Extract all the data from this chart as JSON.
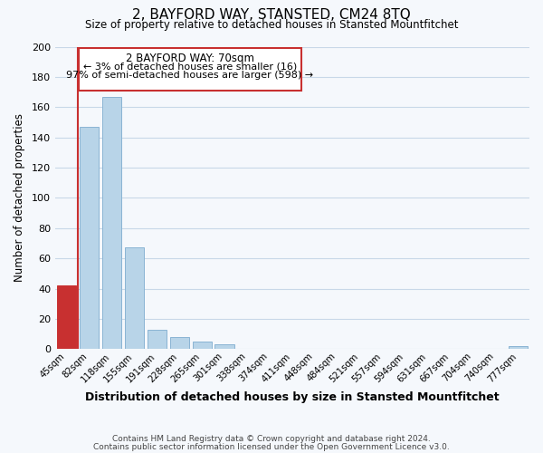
{
  "title": "2, BAYFORD WAY, STANSTED, CM24 8TQ",
  "subtitle": "Size of property relative to detached houses in Stansted Mountfitchet",
  "xlabel": "Distribution of detached houses by size in Stansted Mountfitchet",
  "ylabel": "Number of detached properties",
  "bar_labels": [
    "45sqm",
    "82sqm",
    "118sqm",
    "155sqm",
    "191sqm",
    "228sqm",
    "265sqm",
    "301sqm",
    "338sqm",
    "374sqm",
    "411sqm",
    "448sqm",
    "484sqm",
    "521sqm",
    "557sqm",
    "594sqm",
    "631sqm",
    "667sqm",
    "704sqm",
    "740sqm",
    "777sqm"
  ],
  "bar_values": [
    42,
    147,
    167,
    67,
    13,
    8,
    5,
    3,
    0,
    0,
    0,
    0,
    0,
    0,
    0,
    0,
    0,
    0,
    0,
    0,
    2
  ],
  "bar_color_normal": "#b8d4e8",
  "bar_color_highlight": "#c83030",
  "bar_edge_normal": "#8ab4d4",
  "highlight_index": 0,
  "ylim": [
    0,
    200
  ],
  "yticks": [
    0,
    20,
    40,
    60,
    80,
    100,
    120,
    140,
    160,
    180,
    200
  ],
  "annotation_title": "2 BAYFORD WAY: 70sqm",
  "annotation_line1": "← 3% of detached houses are smaller (16)",
  "annotation_line2": "97% of semi-detached houses are larger (598) →",
  "footer_line1": "Contains HM Land Registry data © Crown copyright and database right 2024.",
  "footer_line2": "Contains public sector information licensed under the Open Government Licence v3.0.",
  "background_color": "#f5f8fc",
  "grid_color": "#c8d8e8"
}
